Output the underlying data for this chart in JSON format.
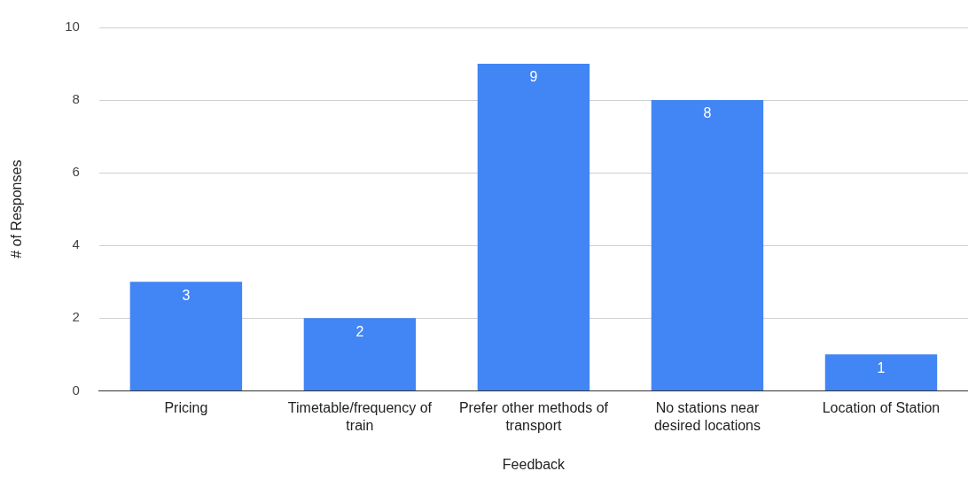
{
  "chart_data": {
    "type": "bar",
    "xlabel": "Feedback",
    "ylabel": "# of Responses",
    "categories": [
      "Pricing",
      "Timetable/frequency of train",
      "Prefer other methods of transport",
      "No stations near desired locations",
      "Location of Station"
    ],
    "values": [
      3,
      2,
      9,
      8,
      1
    ],
    "color": "#4285f4",
    "ylim": [
      0,
      10
    ],
    "yticks": [
      0,
      2,
      4,
      6,
      8,
      10
    ],
    "grid": "y",
    "legend": false,
    "data_labels": true
  }
}
